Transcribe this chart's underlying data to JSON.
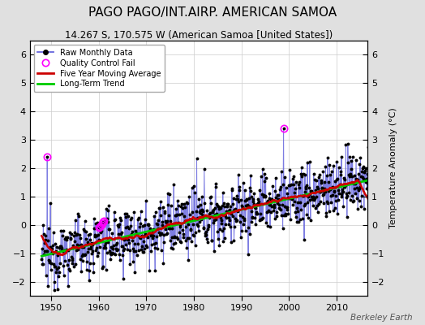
{
  "title": "PAGO PAGO/INT.AIRP. AMERICAN SAMOA",
  "subtitle": "14.267 S, 170.575 W (American Samoa [United States])",
  "ylabel": "Temperature Anomaly (°C)",
  "watermark": "Berkeley Earth",
  "ylim": [
    -2.5,
    6.5
  ],
  "yticks": [
    -2,
    -1,
    0,
    1,
    2,
    3,
    4,
    5,
    6
  ],
  "xlim": [
    1945.5,
    2016.5
  ],
  "xticks": [
    1950,
    1960,
    1970,
    1980,
    1990,
    2000,
    2010
  ],
  "raw_color": "#4444cc",
  "raw_line_color": "#6666dd",
  "avg_color": "#cc0000",
  "trend_color": "#00cc00",
  "qc_color": "#ff00ff",
  "bg_color": "#e0e0e0",
  "plot_bg": "#ffffff",
  "title_fontsize": 11,
  "subtitle_fontsize": 8.5,
  "tick_fontsize": 8,
  "ylabel_fontsize": 8
}
